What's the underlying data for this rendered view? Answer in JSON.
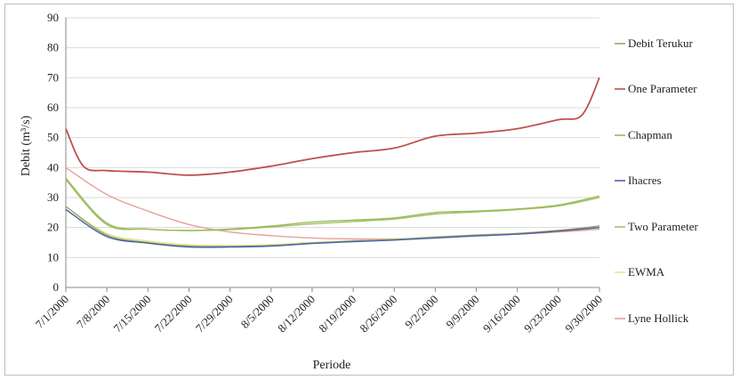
{
  "chart_data": {
    "type": "line",
    "xlabel": "Periode",
    "ylabel": "Debit (m³/s)",
    "ylim": [
      0,
      90
    ],
    "yticks": [
      0,
      10,
      20,
      30,
      40,
      50,
      60,
      70,
      80,
      90
    ],
    "xlim": [
      "7/1/2000",
      "9/30/2000"
    ],
    "xticks": [
      "7/1/2000",
      "7/8/2000",
      "7/15/2000",
      "7/22/2000",
      "7/29/2000",
      "8/5/2000",
      "8/12/2000",
      "8/19/2000",
      "8/26/2000",
      "9/2/2000",
      "9/9/2000",
      "9/16/2000",
      "9/23/2000",
      "9/30/2000"
    ],
    "grid": "horizontal",
    "legend_position": "right",
    "series": [
      {
        "name": "Debit Terukur",
        "color": "#8faa6a",
        "x": [
          "7/1/2000",
          "7/8/2000",
          "7/15/2000",
          "7/22/2000",
          "7/29/2000",
          "8/5/2000",
          "8/12/2000",
          "8/19/2000",
          "8/26/2000",
          "9/2/2000",
          "9/9/2000",
          "9/16/2000",
          "9/23/2000",
          "9/30/2000"
        ],
        "values": [
          27,
          17.5,
          15,
          13.8,
          13.7,
          14,
          14.8,
          15.5,
          16,
          16.8,
          17.5,
          18,
          19,
          20.5
        ]
      },
      {
        "name": "One Parameter",
        "color": "#c0504d",
        "x": [
          "7/1/2000",
          "7/4/2000",
          "7/8/2000",
          "7/15/2000",
          "7/22/2000",
          "7/29/2000",
          "8/5/2000",
          "8/12/2000",
          "8/19/2000",
          "8/26/2000",
          "9/2/2000",
          "9/9/2000",
          "9/16/2000",
          "9/23/2000",
          "9/27/2000",
          "9/30/2000"
        ],
        "values": [
          53,
          40.5,
          39,
          38.5,
          37.5,
          38.5,
          40.5,
          43,
          45,
          46.5,
          50.5,
          51.5,
          53,
          56,
          57.5,
          70
        ]
      },
      {
        "name": "Chapman",
        "color": "#9bbb59",
        "x": [
          "7/1/2000",
          "7/8/2000",
          "7/15/2000",
          "7/22/2000",
          "7/29/2000",
          "8/5/2000",
          "8/12/2000",
          "8/19/2000",
          "8/26/2000",
          "9/2/2000",
          "9/9/2000",
          "9/16/2000",
          "9/23/2000",
          "9/30/2000"
        ],
        "values": [
          36,
          21,
          19.5,
          19,
          19.5,
          20.5,
          21.8,
          22.5,
          23.2,
          25,
          25.5,
          26.2,
          27.5,
          30.5
        ]
      },
      {
        "name": "Ihacres",
        "color": "#4f5fa8",
        "x": [
          "7/1/2000",
          "7/8/2000",
          "7/15/2000",
          "7/22/2000",
          "7/29/2000",
          "8/5/2000",
          "8/12/2000",
          "8/19/2000",
          "8/26/2000",
          "9/2/2000",
          "9/9/2000",
          "9/16/2000",
          "9/23/2000",
          "9/30/2000"
        ],
        "values": [
          26,
          17,
          14.8,
          13.5,
          13.5,
          13.8,
          14.7,
          15.3,
          15.8,
          16.5,
          17.2,
          17.8,
          18.8,
          20
        ]
      },
      {
        "name": "Two Parameter",
        "color": "#a6c06a",
        "x": [
          "7/1/2000",
          "7/8/2000",
          "7/15/2000",
          "7/22/2000",
          "7/29/2000",
          "8/5/2000",
          "8/12/2000",
          "8/19/2000",
          "8/26/2000",
          "9/2/2000",
          "9/9/2000",
          "9/16/2000",
          "9/23/2000",
          "9/30/2000"
        ],
        "values": [
          36.5,
          21.5,
          19.5,
          19,
          19.3,
          20.2,
          21.2,
          22,
          22.8,
          24.5,
          25.2,
          26,
          27.2,
          30
        ]
      },
      {
        "name": "EWMA",
        "color": "#e6e68a",
        "x": [
          "7/1/2000",
          "7/8/2000",
          "7/15/2000",
          "7/22/2000",
          "7/29/2000",
          "8/5/2000",
          "8/12/2000",
          "8/19/2000",
          "8/26/2000",
          "9/2/2000",
          "9/9/2000",
          "9/16/2000",
          "9/23/2000",
          "9/30/2000"
        ],
        "values": [
          27,
          18,
          15.5,
          14.2,
          14,
          14.3,
          15,
          15.6,
          16.1,
          16.9,
          17.5,
          18.1,
          19.1,
          20.5
        ]
      },
      {
        "name": "Lyne Hollick",
        "color": "#e8a09a",
        "x": [
          "7/1/2000",
          "7/8/2000",
          "7/15/2000",
          "7/22/2000",
          "7/29/2000",
          "8/5/2000",
          "8/12/2000",
          "8/19/2000",
          "8/26/2000",
          "9/2/2000",
          "9/9/2000",
          "9/16/2000",
          "9/23/2000",
          "9/30/2000"
        ],
        "values": [
          40,
          31,
          25.5,
          21,
          18.5,
          17.3,
          16.5,
          16.2,
          16.2,
          16.5,
          17.2,
          17.8,
          18.5,
          19.5
        ]
      }
    ]
  }
}
